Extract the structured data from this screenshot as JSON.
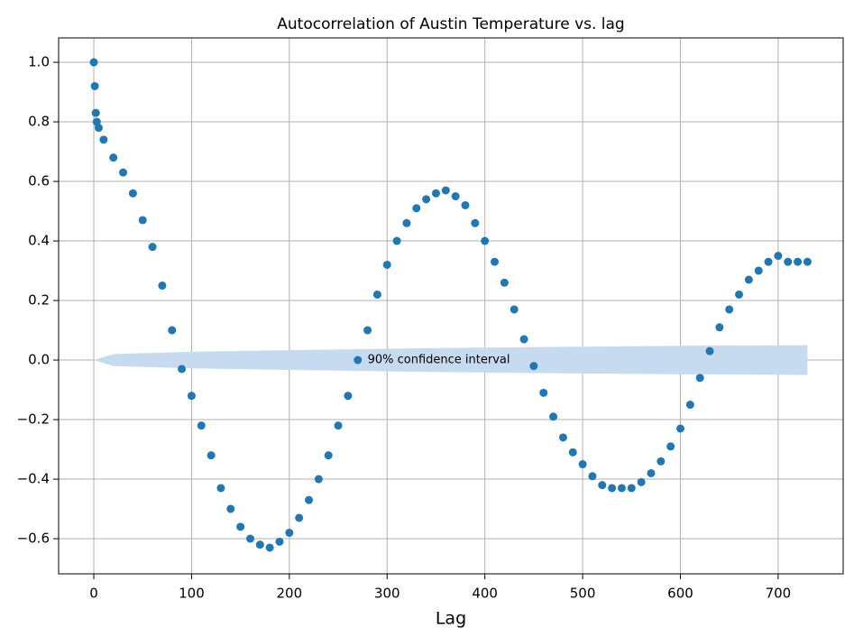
{
  "chart_data": {
    "type": "scatter",
    "title": "Autocorrelation of Austin Temperature vs. lag",
    "xlabel": "Lag",
    "xlim": [
      -36,
      766.5
    ],
    "ylim": [
      -0.718,
      1.082
    ],
    "xticks": [
      0,
      100,
      200,
      300,
      400,
      500,
      600,
      700
    ],
    "yticks": [
      {
        "value": -0.6,
        "label": "−0.6"
      },
      {
        "value": -0.4,
        "label": "−0.4"
      },
      {
        "value": -0.2,
        "label": "−0.2"
      },
      {
        "value": 0,
        "label": "0.0"
      },
      {
        "value": 0.2,
        "label": "0.2"
      },
      {
        "value": 0.4,
        "label": "0.4"
      },
      {
        "value": 0.6,
        "label": "0.6"
      },
      {
        "value": 0.8,
        "label": "0.8"
      },
      {
        "value": 1,
        "label": "1.0"
      }
    ],
    "grid": true,
    "x": [
      0,
      1,
      2,
      3,
      5,
      10,
      20,
      30,
      40,
      50,
      60,
      70,
      80,
      90,
      100,
      110,
      120,
      130,
      140,
      150,
      160,
      170,
      180,
      190,
      200,
      210,
      220,
      230,
      240,
      250,
      260,
      270,
      280,
      290,
      300,
      310,
      320,
      330,
      340,
      350,
      360,
      370,
      380,
      390,
      400,
      410,
      420,
      430,
      440,
      450,
      460,
      470,
      480,
      490,
      500,
      510,
      520,
      530,
      540,
      550,
      560,
      570,
      580,
      590,
      600,
      610,
      620,
      630,
      640,
      650,
      660,
      670,
      680,
      690,
      700,
      710,
      720,
      730
    ],
    "series": [
      {
        "color": "#1f77b4",
        "values": [
          1.0,
          0.92,
          0.83,
          0.8,
          0.78,
          0.74,
          0.68,
          0.63,
          0.56,
          0.47,
          0.38,
          0.25,
          0.1,
          -0.03,
          -0.12,
          -0.22,
          -0.32,
          -0.43,
          -0.5,
          -0.56,
          -0.6,
          -0.62,
          -0.63,
          -0.61,
          -0.58,
          -0.53,
          -0.47,
          -0.4,
          -0.32,
          -0.22,
          -0.12,
          0.0,
          0.1,
          0.22,
          0.32,
          0.4,
          0.46,
          0.51,
          0.54,
          0.56,
          0.57,
          0.55,
          0.52,
          0.46,
          0.4,
          0.33,
          0.26,
          0.17,
          0.07,
          -0.02,
          -0.11,
          -0.19,
          -0.26,
          -0.31,
          -0.35,
          -0.39,
          -0.42,
          -0.43,
          -0.43,
          -0.43,
          -0.41,
          -0.38,
          -0.34,
          -0.29,
          -0.23,
          -0.15,
          -0.06,
          0.03,
          0.11,
          0.17,
          0.22,
          0.27,
          0.3,
          0.33,
          0.35,
          0.33,
          0.33,
          0.33
        ]
      }
    ],
    "confidence_band": {
      "label": "90% confidence interval",
      "color": "#c6dbef",
      "x": [
        0,
        20,
        100,
        200,
        300,
        400,
        500,
        600,
        730
      ],
      "upper": [
        0,
        0.02,
        0.028,
        0.033,
        0.038,
        0.042,
        0.045,
        0.048,
        0.05
      ],
      "lower": [
        0,
        -0.02,
        -0.028,
        -0.033,
        -0.038,
        -0.042,
        -0.045,
        -0.048,
        -0.05
      ]
    }
  }
}
